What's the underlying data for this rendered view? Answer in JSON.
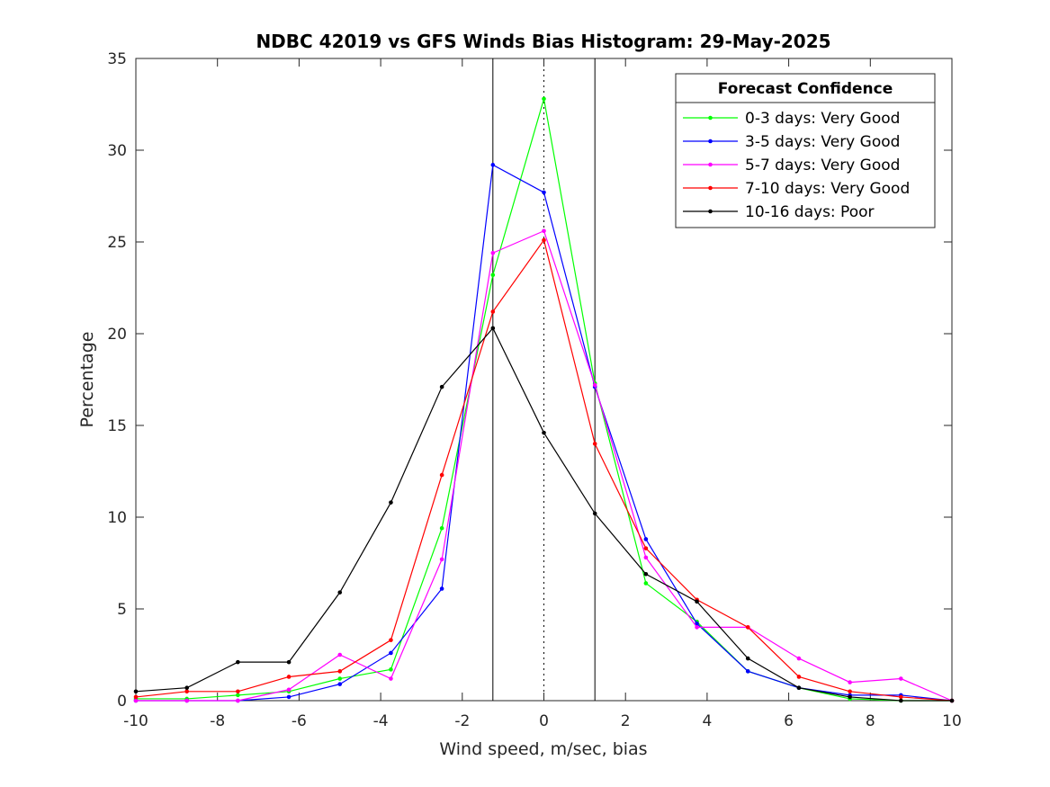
{
  "chart_data": {
    "type": "line",
    "title": "NDBC 42019 vs GFS Winds Bias Histogram: 29-May-2025",
    "xlabel": "Wind speed, m/sec, bias",
    "ylabel": "Percentage",
    "xlim": [
      -10,
      10
    ],
    "ylim": [
      0,
      35
    ],
    "xticks": [
      -10,
      -8,
      -6,
      -4,
      -2,
      0,
      2,
      4,
      6,
      8,
      10
    ],
    "yticks": [
      0,
      5,
      10,
      15,
      20,
      25,
      30,
      35
    ],
    "grid": false,
    "reference_lines": [
      {
        "x": -1.25,
        "style": "solid"
      },
      {
        "x": 0,
        "style": "dotted"
      },
      {
        "x": 1.25,
        "style": "solid"
      }
    ],
    "legend": {
      "title": "Forecast Confidence",
      "position": "top-right"
    },
    "x": [
      -10,
      -8.75,
      -7.5,
      -6.25,
      -5,
      -3.75,
      -2.5,
      -1.25,
      0,
      1.25,
      2.5,
      3.75,
      5,
      6.25,
      7.5,
      8.75,
      10
    ],
    "series": [
      {
        "name": "0-3 days: Very Good",
        "color": "#00ff00",
        "values": [
          0.1,
          0.1,
          0.3,
          0.5,
          1.2,
          1.7,
          9.4,
          23.2,
          32.8,
          17.3,
          6.4,
          4.3,
          1.6,
          0.7,
          0.1,
          0.0,
          0.0
        ]
      },
      {
        "name": "3-5 days: Very Good",
        "color": "#0000ff",
        "values": [
          0.0,
          0.0,
          0.0,
          0.2,
          0.9,
          2.6,
          6.1,
          29.2,
          27.7,
          17.1,
          8.8,
          4.2,
          1.6,
          0.7,
          0.3,
          0.3,
          0.0
        ]
      },
      {
        "name": "5-7 days: Very Good",
        "color": "#ff00ff",
        "values": [
          0.0,
          0.0,
          0.0,
          0.6,
          2.5,
          1.2,
          7.7,
          24.4,
          25.6,
          17.2,
          7.8,
          4.0,
          4.0,
          2.3,
          1.0,
          1.2,
          0.0
        ]
      },
      {
        "name": "7-10 days: Very Good",
        "color": "#ff0000",
        "values": [
          0.2,
          0.5,
          0.5,
          1.3,
          1.6,
          3.3,
          12.3,
          21.2,
          25.1,
          14.0,
          8.3,
          5.5,
          4.0,
          1.3,
          0.5,
          0.2,
          0.0
        ]
      },
      {
        "name": "10-16 days: Poor",
        "color": "#000000",
        "values": [
          0.5,
          0.7,
          2.1,
          2.1,
          5.9,
          10.8,
          17.1,
          20.3,
          14.6,
          10.2,
          6.9,
          5.4,
          2.3,
          0.7,
          0.2,
          0.0,
          0.0
        ]
      }
    ]
  }
}
